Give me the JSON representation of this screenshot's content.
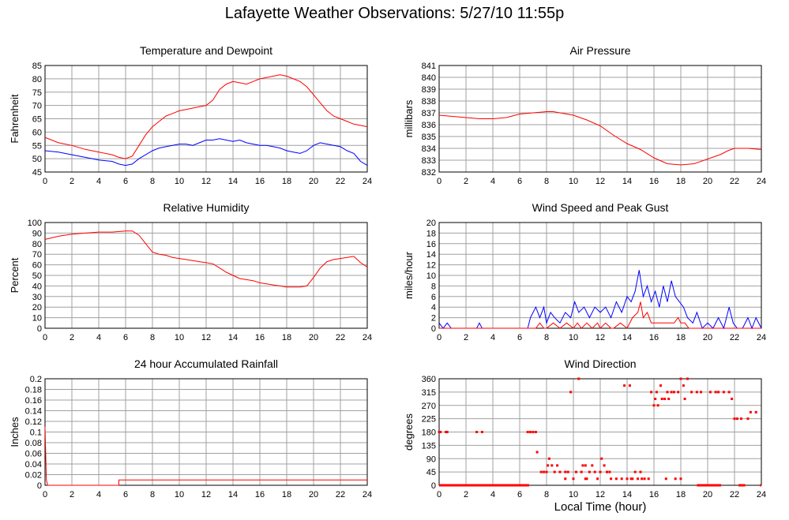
{
  "title": "Lafayette Weather Observations: 5/27/10 11:55p",
  "x_axis_title": "Local Time (hour)",
  "colors": {
    "red": "#ff0000",
    "blue": "#0000ff",
    "grid": "#a0a0a0"
  },
  "chart_data": [
    {
      "id": "temperature",
      "type": "line",
      "title": "Temperature and Dewpoint",
      "ylabel": "Fahrenheit",
      "xlim": [
        0,
        24
      ],
      "ylim": [
        45,
        85
      ],
      "xticks": [
        0,
        2,
        4,
        6,
        8,
        10,
        12,
        14,
        16,
        18,
        20,
        22,
        24
      ],
      "yticks": [
        45,
        50,
        55,
        60,
        65,
        70,
        75,
        80,
        85
      ],
      "grid": true,
      "series": [
        {
          "color": "#ff0000",
          "x": [
            0,
            1,
            2,
            3,
            4,
            5,
            5.5,
            6,
            6.5,
            7,
            7.5,
            8,
            8.5,
            9,
            9.5,
            10,
            10.5,
            11,
            11.5,
            12,
            12.5,
            13,
            13.5,
            14,
            14.5,
            15,
            15.5,
            16,
            16.5,
            17,
            17.5,
            18,
            18.5,
            19,
            19.5,
            20,
            20.5,
            21,
            21.5,
            22,
            22.5,
            23,
            23.5,
            24
          ],
          "y": [
            58,
            56,
            55,
            53.5,
            52.5,
            51.5,
            50.5,
            50,
            51,
            55,
            59,
            62,
            64,
            66,
            67,
            68,
            68.5,
            69,
            69.5,
            70,
            72,
            76,
            78,
            79,
            78.5,
            78,
            79,
            80,
            80.5,
            81,
            81.5,
            81,
            80,
            79,
            77,
            74,
            71,
            68,
            66,
            65,
            64,
            63,
            62.5,
            62
          ]
        },
        {
          "color": "#0000ff",
          "x": [
            0,
            1,
            2,
            3,
            4,
            5,
            5.5,
            6,
            6.5,
            7,
            7.5,
            8,
            8.5,
            9,
            9.5,
            10,
            10.5,
            11,
            11.5,
            12,
            12.5,
            13,
            13.5,
            14,
            14.5,
            15,
            15.5,
            16,
            16.5,
            17,
            17.5,
            18,
            18.5,
            19,
            19.5,
            20,
            20.5,
            21,
            21.5,
            22,
            22.5,
            23,
            23.5,
            24
          ],
          "y": [
            53,
            52.5,
            51.5,
            50.5,
            49.5,
            49,
            48,
            47.5,
            48,
            50,
            51.5,
            53,
            54,
            54.5,
            55,
            55.5,
            55.5,
            55,
            56,
            57,
            57,
            57.5,
            57,
            56.5,
            57,
            56,
            55.5,
            55,
            55,
            54.5,
            54,
            53,
            52.5,
            52,
            53,
            55,
            56,
            55.5,
            55,
            54.5,
            53,
            52,
            49,
            47.5
          ]
        }
      ]
    },
    {
      "id": "pressure",
      "type": "line",
      "title": "Air Pressure",
      "ylabel": "millibars",
      "xlim": [
        0,
        24
      ],
      "ylim": [
        832,
        841
      ],
      "xticks": [
        0,
        2,
        4,
        6,
        8,
        10,
        12,
        14,
        16,
        18,
        20,
        22,
        24
      ],
      "yticks": [
        832,
        833,
        834,
        835,
        836,
        837,
        838,
        839,
        840,
        841
      ],
      "grid": true,
      "series": [
        {
          "color": "#ff0000",
          "x": [
            0,
            1,
            2,
            3,
            4,
            5,
            6,
            7,
            8,
            8.5,
            9,
            10,
            11,
            12,
            13,
            14,
            15,
            16,
            17,
            18,
            19,
            20,
            21,
            21.5,
            22,
            23,
            24
          ],
          "y": [
            836.8,
            836.7,
            836.6,
            836.5,
            836.5,
            836.6,
            836.9,
            837,
            837.1,
            837.1,
            837,
            836.8,
            836.4,
            835.9,
            835.1,
            834.4,
            833.9,
            833.2,
            832.7,
            832.6,
            832.7,
            833.1,
            833.5,
            833.8,
            834,
            834,
            833.9
          ]
        }
      ]
    },
    {
      "id": "humidity",
      "type": "line",
      "title": "Relative Humidity",
      "ylabel": "Percent",
      "xlim": [
        0,
        24
      ],
      "ylim": [
        0,
        100
      ],
      "xticks": [
        0,
        2,
        4,
        6,
        8,
        10,
        12,
        14,
        16,
        18,
        20,
        22,
        24
      ],
      "yticks": [
        0,
        10,
        20,
        30,
        40,
        50,
        60,
        70,
        80,
        90,
        100
      ],
      "grid": true,
      "series": [
        {
          "color": "#ff0000",
          "x": [
            0,
            1,
            2,
            3,
            4,
            5,
            6,
            6.5,
            7,
            7.5,
            8,
            8.5,
            9,
            9.5,
            10,
            10.5,
            11,
            11.5,
            12,
            12.5,
            13,
            13.5,
            14,
            14.5,
            15,
            15.5,
            16,
            16.5,
            17,
            17.5,
            18,
            18.5,
            19,
            19.5,
            20,
            20.5,
            21,
            21.5,
            22,
            22.5,
            23,
            23.5,
            24
          ],
          "y": [
            84,
            87,
            89,
            90,
            91,
            91,
            92,
            92,
            88,
            80,
            72,
            70,
            69,
            67,
            66,
            65,
            64,
            63,
            62,
            61,
            57,
            53,
            50,
            47,
            46,
            45,
            43,
            42,
            41,
            40,
            39,
            39,
            39,
            40,
            48,
            57,
            63,
            65,
            66,
            67,
            68,
            62,
            58
          ]
        }
      ]
    },
    {
      "id": "wind",
      "type": "line",
      "title": "Wind Speed and Peak Gust",
      "ylabel": "miles/hour",
      "xlim": [
        0,
        24
      ],
      "ylim": [
        0,
        20
      ],
      "xticks": [
        0,
        2,
        4,
        6,
        8,
        10,
        12,
        14,
        16,
        18,
        20,
        22,
        24
      ],
      "yticks": [
        0,
        2,
        4,
        6,
        8,
        10,
        12,
        14,
        16,
        18,
        20
      ],
      "grid": true,
      "series": [
        {
          "color": "#0000ff",
          "x": [
            0,
            0.3,
            0.6,
            0.9,
            2.8,
            3,
            3.2,
            6.6,
            6.8,
            7.2,
            7.5,
            7.8,
            8,
            8.3,
            8.6,
            9,
            9.4,
            9.8,
            10.1,
            10.4,
            10.8,
            11.2,
            11.6,
            12,
            12.4,
            12.8,
            13.2,
            13.6,
            14,
            14.3,
            14.6,
            14.9,
            15.2,
            15.5,
            15.8,
            16.1,
            16.4,
            16.7,
            17,
            17.3,
            17.6,
            17.9,
            18.2,
            18.5,
            18.9,
            19.2,
            19.6,
            20,
            20.4,
            20.8,
            21.2,
            21.6,
            21.9,
            22.2,
            22.6,
            23,
            23.3,
            23.6,
            24
          ],
          "y": [
            1,
            0,
            1,
            0,
            0,
            1,
            0,
            0,
            2,
            4,
            2,
            4,
            1,
            3,
            2,
            1,
            3,
            2,
            5,
            3,
            4,
            2,
            4,
            3,
            4,
            2,
            5,
            3,
            6,
            5,
            7,
            11,
            6,
            8,
            5,
            7,
            4,
            8,
            5,
            9,
            6,
            5,
            4,
            2,
            1,
            3,
            0,
            1,
            0,
            2,
            0,
            4,
            1,
            0,
            0,
            2,
            0,
            2,
            0
          ]
        },
        {
          "color": "#ff0000",
          "x": [
            0,
            7.2,
            7.5,
            7.8,
            8,
            8.5,
            9,
            9.5,
            10,
            10.3,
            10.6,
            11,
            11.4,
            11.8,
            12,
            12.4,
            12.8,
            13,
            13.5,
            14,
            14.4,
            14.8,
            15,
            15.2,
            15.5,
            15.8,
            16,
            16.5,
            17,
            17.5,
            17.8,
            18,
            18.3,
            18.6,
            19,
            24
          ],
          "y": [
            0,
            0,
            1,
            0,
            0,
            1,
            0,
            1,
            0,
            1,
            0,
            1,
            0,
            1,
            0,
            1,
            0,
            0,
            1,
            0,
            2,
            3,
            5,
            2,
            3,
            1,
            1,
            1,
            1,
            1,
            2,
            1,
            1,
            0,
            0,
            0
          ]
        }
      ]
    },
    {
      "id": "rainfall",
      "type": "line",
      "title": "24 hour Accumulated Rainfall",
      "ylabel": "Inches",
      "xlim": [
        0,
        24
      ],
      "ylim": [
        0,
        0.2
      ],
      "xticks": [
        0,
        2,
        4,
        6,
        8,
        10,
        12,
        14,
        16,
        18,
        20,
        22,
        24
      ],
      "yticks": [
        0,
        0.02,
        0.04,
        0.06,
        0.08,
        0.1,
        0.12,
        0.14,
        0.16,
        0.18,
        0.2
      ],
      "grid": true,
      "series": [
        {
          "color": "#ff0000",
          "x": [
            0,
            0.1,
            0.2,
            5.5,
            5.5,
            24
          ],
          "y": [
            0.11,
            0.01,
            0,
            0,
            0.01,
            0.01
          ]
        }
      ]
    },
    {
      "id": "direction",
      "type": "scatter",
      "title": "Wind Direction",
      "ylabel": "degrees",
      "xlim": [
        0,
        24
      ],
      "ylim": [
        0,
        360
      ],
      "xticks": [
        0,
        2,
        4,
        6,
        8,
        10,
        12,
        14,
        16,
        18,
        20,
        22,
        24
      ],
      "yticks": [
        0,
        45,
        90,
        135,
        180,
        225,
        270,
        315,
        360
      ],
      "grid": true,
      "series": [
        {
          "color": "#ff0000",
          "points": [
            [
              0,
              180
            ],
            [
              0.1,
              180
            ],
            [
              0.5,
              180
            ],
            [
              0.6,
              180
            ],
            [
              2.8,
              180
            ],
            [
              3.2,
              180
            ],
            [
              6.6,
              180
            ],
            [
              6.8,
              180
            ],
            [
              7,
              180
            ],
            [
              7.2,
              180
            ],
            [
              7.3,
              112
            ],
            [
              7.6,
              45
            ],
            [
              7.8,
              45
            ],
            [
              8,
              45
            ],
            [
              8.1,
              67
            ],
            [
              8.2,
              90
            ],
            [
              8.4,
              67
            ],
            [
              8.6,
              45
            ],
            [
              9,
              45
            ],
            [
              9.4,
              45
            ],
            [
              9.6,
              45
            ],
            [
              9.8,
              315
            ],
            [
              10,
              22
            ],
            [
              10.2,
              45
            ],
            [
              10.4,
              360
            ],
            [
              10.6,
              45
            ],
            [
              10.7,
              67
            ],
            [
              10.9,
              67
            ],
            [
              11,
              22
            ],
            [
              11.2,
              45
            ],
            [
              11.4,
              67
            ],
            [
              11.6,
              45
            ],
            [
              11.8,
              22
            ],
            [
              12,
              45
            ],
            [
              12.1,
              90
            ],
            [
              12.3,
              67
            ],
            [
              12.5,
              45
            ],
            [
              12.8,
              22
            ],
            [
              13.2,
              22
            ],
            [
              13.6,
              22
            ],
            [
              14,
              22
            ],
            [
              14.4,
              22
            ],
            [
              14.8,
              22
            ],
            [
              15,
              45
            ],
            [
              15.3,
              22
            ],
            [
              15.6,
              22
            ],
            [
              15.8,
              315
            ],
            [
              16,
              270
            ],
            [
              16.1,
              292
            ],
            [
              16.2,
              315
            ],
            [
              16.3,
              270
            ],
            [
              16.5,
              337
            ],
            [
              16.6,
              292
            ],
            [
              16.8,
              292
            ],
            [
              17,
              315
            ],
            [
              17.1,
              292
            ],
            [
              17.3,
              315
            ],
            [
              17.5,
              315
            ],
            [
              17.8,
              315
            ],
            [
              18,
              360
            ],
            [
              18.2,
              337
            ],
            [
              18.3,
              292
            ],
            [
              18.5,
              360
            ],
            [
              18.8,
              315
            ],
            [
              19.2,
              315
            ],
            [
              19.5,
              315
            ],
            [
              20.2,
              315
            ],
            [
              20.6,
              315
            ],
            [
              20.8,
              315
            ],
            [
              21.2,
              315
            ],
            [
              21.6,
              315
            ],
            [
              21.8,
              292
            ],
            [
              22,
              225
            ],
            [
              22.2,
              225
            ],
            [
              22.5,
              225
            ],
            [
              23,
              225
            ],
            [
              23.2,
              247
            ],
            [
              23.6,
              247
            ],
            [
              14.3,
              22
            ],
            [
              14.6,
              45
            ],
            [
              15.1,
              22
            ],
            [
              16.9,
              22
            ],
            [
              18,
              22
            ],
            [
              10.9,
              22
            ],
            [
              9.4,
              22
            ],
            [
              12.7,
              45
            ],
            [
              8.8,
              67
            ],
            [
              13.8,
              337
            ],
            [
              14.2,
              337
            ],
            [
              17.6,
              22
            ]
          ],
          "zero_runs": [
            [
              0,
              6.7
            ],
            [
              19.2,
              21
            ],
            [
              22.3,
              22.8
            ],
            [
              23.9,
              24
            ]
          ]
        }
      ]
    }
  ]
}
